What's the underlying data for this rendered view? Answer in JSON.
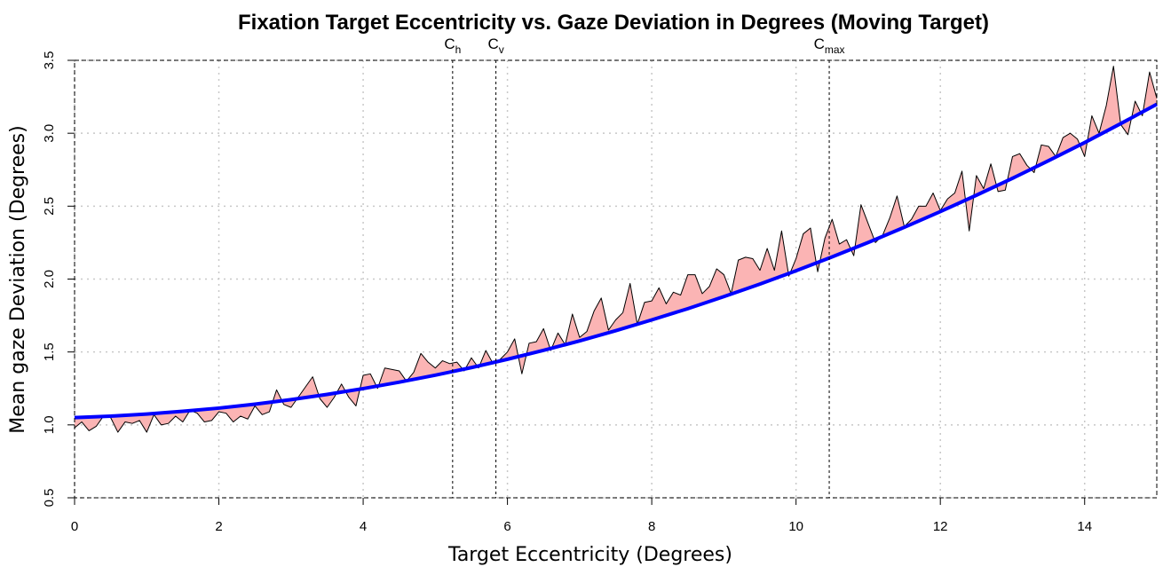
{
  "chart_data": {
    "type": "line",
    "title": "Fixation Target Eccentricity vs. Gaze Deviation in Degrees (Moving Target)",
    "x_label": "Target Eccentricity (Degrees)",
    "y_label": "Mean gaze Deviation (Degrees)",
    "xlim": [
      0,
      15
    ],
    "ylim": [
      0.5,
      3.5
    ],
    "xticks": [
      0,
      2,
      4,
      6,
      8,
      10,
      12,
      14
    ],
    "yticks": [
      0.5,
      {
        "value": 1,
        "label": "1.0"
      },
      1.5,
      {
        "value": 2,
        "label": "2.0"
      },
      2.5,
      {
        "value": 3,
        "label": "3.0"
      },
      3.5
    ],
    "grid": true,
    "fill_color": "#fbb4b4",
    "series": [
      {
        "color": "#000000",
        "x": [
          0,
          0.1,
          0.2,
          0.3,
          0.4,
          0.5,
          0.6,
          0.7,
          0.8,
          0.9,
          1,
          1.1,
          1.2,
          1.3,
          1.4,
          1.5,
          1.6,
          1.7,
          1.8,
          1.9,
          2,
          2.1,
          2.2,
          2.3,
          2.4,
          2.5,
          2.6,
          2.7,
          2.8,
          2.9,
          3,
          3.1,
          3.2,
          3.3,
          3.4,
          3.5,
          3.6,
          3.7,
          3.8,
          3.9,
          4,
          4.1,
          4.2,
          4.3,
          4.4,
          4.5,
          4.6,
          4.7,
          4.8,
          4.9,
          5,
          5.1,
          5.2,
          5.3,
          5.4,
          5.5,
          5.6,
          5.7,
          5.8,
          5.9,
          6,
          6.1,
          6.2,
          6.3,
          6.4,
          6.5,
          6.6,
          6.7,
          6.8,
          6.9,
          7,
          7.1,
          7.2,
          7.3,
          7.4,
          7.5,
          7.6,
          7.7,
          7.8,
          7.9,
          8,
          8.1,
          8.2,
          8.3,
          8.4,
          8.5,
          8.6,
          8.7,
          8.8,
          8.9,
          9,
          9.1,
          9.2,
          9.3,
          9.4,
          9.5,
          9.6,
          9.7,
          9.8,
          9.9,
          10,
          10.1,
          10.2,
          10.3,
          10.4,
          10.5,
          10.6,
          10.7,
          10.8,
          10.9,
          11,
          11.1,
          11.2,
          11.3,
          11.4,
          11.5,
          11.6,
          11.7,
          11.8,
          11.9,
          12,
          12.1,
          12.2,
          12.3,
          12.4,
          12.5,
          12.6,
          12.7,
          12.8,
          12.9,
          13,
          13.1,
          13.2,
          13.3,
          13.4,
          13.5,
          13.6,
          13.7,
          13.8,
          13.9,
          14,
          14.1,
          14.2,
          14.3,
          14.4,
          14.5,
          14.6,
          14.7,
          14.8,
          14.9,
          15
        ],
        "values": [
          0.98,
          1.02,
          0.96,
          0.99,
          1.06,
          1.05,
          0.95,
          1.02,
          1.01,
          1.03,
          0.95,
          1.07,
          1.0,
          1.01,
          1.06,
          1.02,
          1.1,
          1.08,
          1.02,
          1.03,
          1.09,
          1.08,
          1.02,
          1.06,
          1.04,
          1.13,
          1.07,
          1.09,
          1.24,
          1.14,
          1.12,
          1.19,
          1.26,
          1.33,
          1.18,
          1.12,
          1.19,
          1.28,
          1.19,
          1.13,
          1.34,
          1.35,
          1.25,
          1.39,
          1.38,
          1.37,
          1.3,
          1.36,
          1.49,
          1.43,
          1.39,
          1.44,
          1.42,
          1.43,
          1.37,
          1.46,
          1.39,
          1.51,
          1.42,
          1.45,
          1.5,
          1.59,
          1.35,
          1.56,
          1.57,
          1.66,
          1.51,
          1.63,
          1.55,
          1.76,
          1.6,
          1.64,
          1.78,
          1.87,
          1.65,
          1.72,
          1.77,
          1.97,
          1.69,
          1.84,
          1.85,
          1.94,
          1.83,
          1.91,
          1.89,
          2.03,
          2.03,
          1.9,
          1.95,
          2.07,
          2.03,
          1.9,
          2.13,
          2.15,
          2.14,
          2.06,
          2.21,
          2.06,
          2.33,
          2.02,
          2.14,
          2.31,
          2.35,
          2.05,
          2.28,
          2.41,
          2.24,
          2.27,
          2.16,
          2.51,
          2.38,
          2.25,
          2.3,
          2.42,
          2.57,
          2.36,
          2.41,
          2.5,
          2.5,
          2.59,
          2.47,
          2.55,
          2.59,
          2.74,
          2.33,
          2.71,
          2.62,
          2.79,
          2.6,
          2.61,
          2.84,
          2.86,
          2.78,
          2.73,
          2.92,
          2.91,
          2.84,
          2.97,
          3.0,
          2.96,
          2.84,
          3.12,
          3.0,
          3.19,
          3.46,
          3.06,
          2.99,
          3.22,
          3.12,
          3.42,
          3.24
        ]
      },
      {
        "color": "#0000ff",
        "x": [
          0,
          0.5,
          1,
          1.5,
          2,
          2.5,
          3,
          3.5,
          4,
          4.5,
          5,
          5.5,
          6,
          6.5,
          7,
          7.5,
          8,
          8.5,
          9,
          9.5,
          10,
          10.5,
          11,
          11.5,
          12,
          12.5,
          13,
          13.5,
          14,
          14.5,
          15
        ],
        "values": [
          1.05,
          1.06,
          1.074,
          1.093,
          1.115,
          1.142,
          1.173,
          1.209,
          1.249,
          1.293,
          1.341,
          1.393,
          1.45,
          1.511,
          1.576,
          1.646,
          1.72,
          1.797,
          1.88,
          1.966,
          2.057,
          2.152,
          2.251,
          2.355,
          2.463,
          2.575,
          2.691,
          2.812,
          2.936,
          3.066,
          3.199
        ]
      }
    ],
    "vlines": [
      {
        "x": 5.24,
        "label": "C",
        "subscript": "h"
      },
      {
        "x": 5.84,
        "label": "C",
        "subscript": "v"
      },
      {
        "x": 10.46,
        "label": "C",
        "subscript": "max"
      }
    ]
  }
}
